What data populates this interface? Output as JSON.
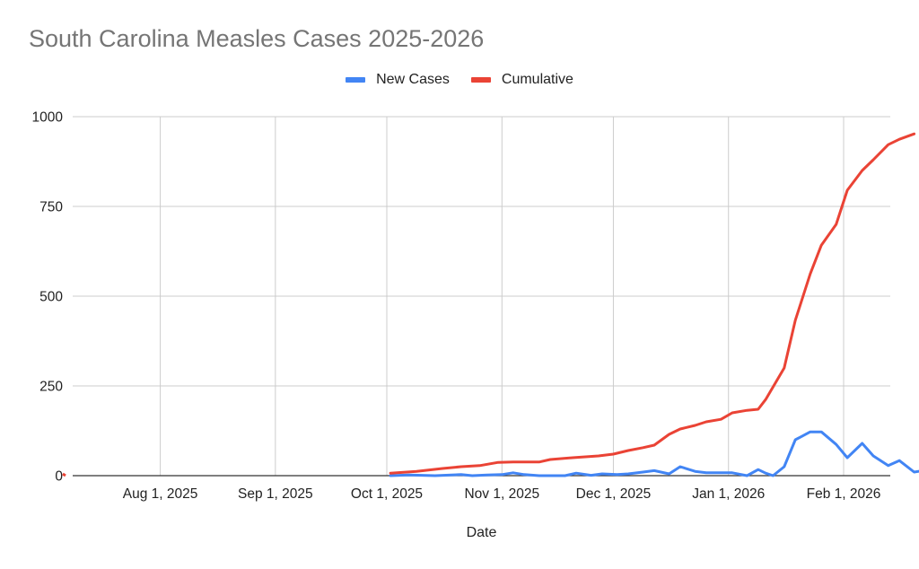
{
  "chart_data": {
    "type": "line",
    "title": "South Carolina Measles Cases 2025-2026",
    "xlabel": "Date",
    "ylabel": "",
    "ylim": [
      0,
      1000
    ],
    "yticks": [
      0,
      250,
      500,
      750,
      1000
    ],
    "xlim": [
      "2025-07-06",
      "2026-02-12"
    ],
    "xticks": [
      {
        "date": "2025-08-01",
        "label": "Aug 1, 2025"
      },
      {
        "date": "2025-09-01",
        "label": "Sep 1, 2025"
      },
      {
        "date": "2025-10-01",
        "label": "Oct 1, 2025"
      },
      {
        "date": "2025-11-01",
        "label": "Nov 1, 2025"
      },
      {
        "date": "2025-12-01",
        "label": "Dec 1, 2025"
      },
      {
        "date": "2026-01-01",
        "label": "Jan 1, 2026"
      },
      {
        "date": "2026-02-01",
        "label": "Feb 1, 2026"
      }
    ],
    "grid": true,
    "legend_position": "top",
    "series": [
      {
        "name": "New Cases",
        "color": "#4285f4",
        "points": [
          [
            "2025-10-02",
            0
          ],
          [
            "2025-10-07",
            2
          ],
          [
            "2025-10-14",
            0
          ],
          [
            "2025-10-21",
            3
          ],
          [
            "2025-10-24",
            0
          ],
          [
            "2025-10-28",
            2
          ],
          [
            "2025-11-01",
            3
          ],
          [
            "2025-11-04",
            8
          ],
          [
            "2025-11-07",
            3
          ],
          [
            "2025-11-11",
            0
          ],
          [
            "2025-11-14",
            0
          ],
          [
            "2025-11-18",
            0
          ],
          [
            "2025-11-21",
            7
          ],
          [
            "2025-11-25",
            1
          ],
          [
            "2025-11-28",
            5
          ],
          [
            "2025-12-02",
            3
          ],
          [
            "2025-12-05",
            5
          ],
          [
            "2025-12-09",
            10
          ],
          [
            "2025-12-12",
            14
          ],
          [
            "2025-12-16",
            5
          ],
          [
            "2025-12-19",
            25
          ],
          [
            "2025-12-23",
            12
          ],
          [
            "2025-12-26",
            8
          ],
          [
            "2025-12-30",
            8
          ],
          [
            "2026-01-02",
            8
          ],
          [
            "2026-01-06",
            0
          ],
          [
            "2026-01-09",
            17
          ],
          [
            "2026-01-11",
            7
          ],
          [
            "2026-01-13",
            0
          ],
          [
            "2026-01-16",
            25
          ],
          [
            "2026-01-19",
            100
          ],
          [
            "2026-01-23",
            122
          ],
          [
            "2026-01-26",
            122
          ],
          [
            "2026-01-30",
            87
          ],
          [
            "2026-02-02",
            50
          ],
          [
            "2026-02-06",
            90
          ],
          [
            "2026-02-09",
            55
          ],
          [
            "2026-02-13",
            28
          ],
          [
            "2026-02-16",
            42
          ],
          [
            "2026-02-20",
            10
          ],
          [
            "2026-02-23",
            15
          ]
        ]
      },
      {
        "name": "Cumulative",
        "color": "#ea4335",
        "points": [
          [
            "2025-07-06",
            5
          ],
          [
            "2025-10-02",
            7
          ],
          [
            "2025-10-09",
            12
          ],
          [
            "2025-10-16",
            20
          ],
          [
            "2025-10-21",
            25
          ],
          [
            "2025-10-26",
            28
          ],
          [
            "2025-10-31",
            37
          ],
          [
            "2025-11-04",
            38
          ],
          [
            "2025-11-11",
            38
          ],
          [
            "2025-11-14",
            45
          ],
          [
            "2025-11-20",
            50
          ],
          [
            "2025-11-27",
            55
          ],
          [
            "2025-12-01",
            60
          ],
          [
            "2025-12-05",
            70
          ],
          [
            "2025-12-09",
            78
          ],
          [
            "2025-12-12",
            85
          ],
          [
            "2025-12-16",
            115
          ],
          [
            "2025-12-19",
            130
          ],
          [
            "2025-12-23",
            140
          ],
          [
            "2025-12-26",
            150
          ],
          [
            "2025-12-30",
            157
          ],
          [
            "2026-01-02",
            175
          ],
          [
            "2026-01-06",
            182
          ],
          [
            "2026-01-09",
            185
          ],
          [
            "2026-01-11",
            212
          ],
          [
            "2026-01-16",
            300
          ],
          [
            "2026-01-19",
            433
          ],
          [
            "2026-01-23",
            562
          ],
          [
            "2026-01-26",
            642
          ],
          [
            "2026-01-30",
            700
          ],
          [
            "2026-02-02",
            795
          ],
          [
            "2026-02-06",
            850
          ],
          [
            "2026-02-09",
            880
          ],
          [
            "2026-02-13",
            922
          ],
          [
            "2026-02-16",
            937
          ],
          [
            "2026-02-20",
            952
          ]
        ]
      }
    ]
  }
}
